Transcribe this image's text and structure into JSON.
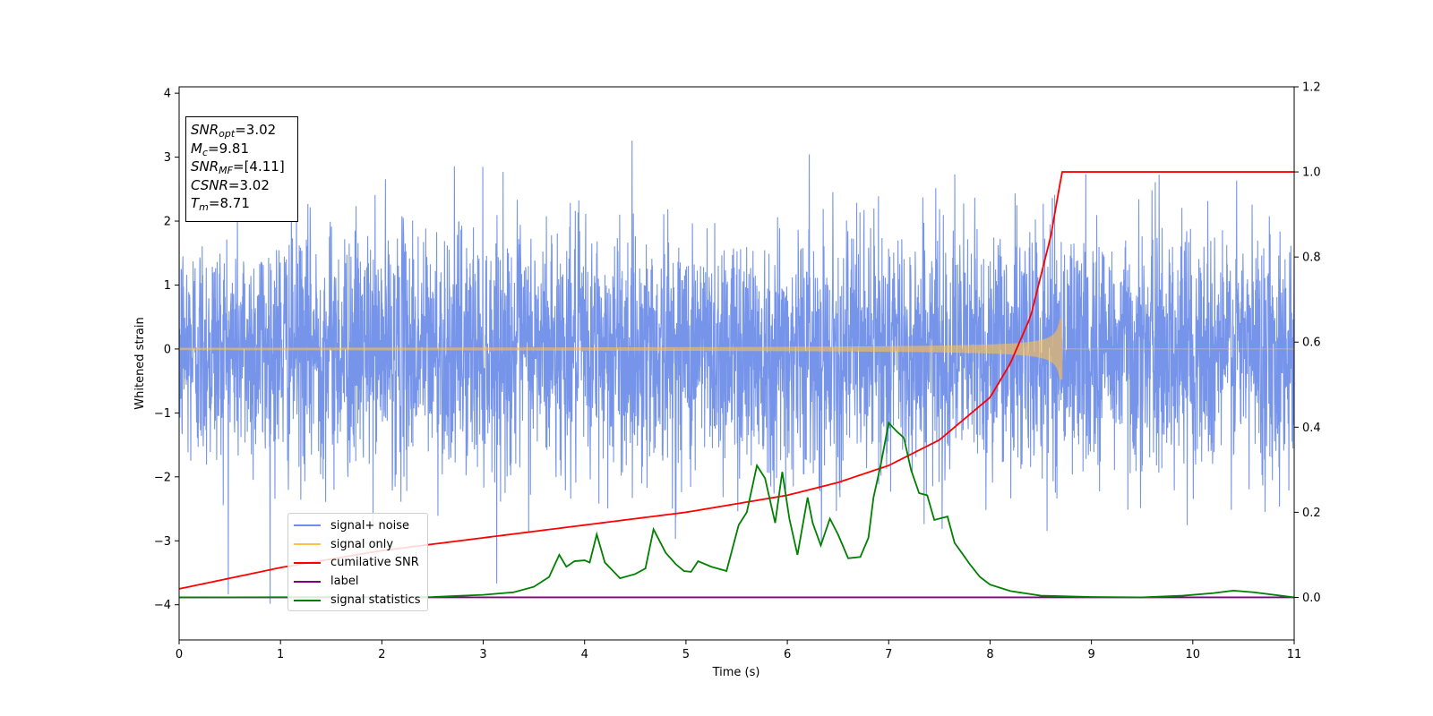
{
  "chart_data": {
    "type": "line",
    "title": "",
    "xlabel": "Time (s)",
    "ylabel": "Whitened strain",
    "xlim": [
      0,
      11
    ],
    "ylim_left": [
      -4.55,
      4.1
    ],
    "ylim_right": [
      -0.1,
      1.2
    ],
    "x_ticks": [
      "0",
      "1",
      "2",
      "3",
      "4",
      "5",
      "6",
      "7",
      "8",
      "9",
      "10",
      "11"
    ],
    "y_ticks_left": [
      "−4",
      "−3",
      "−2",
      "−1",
      "0",
      "1",
      "2",
      "3",
      "4"
    ],
    "y_ticks_right": [
      "0.0",
      "0.2",
      "0.4",
      "0.6",
      "0.8",
      "1.0",
      "1.2"
    ],
    "legend_placement": "lower-left",
    "grid": false,
    "series": [
      {
        "name": "signal+ noise",
        "axis": "left",
        "color": "#6f8ee8",
        "description_values": {
          "amplitude_std": 0.95,
          "x_range": [
            0,
            11
          ]
        }
      },
      {
        "name": "signal only",
        "axis": "left",
        "color": "#ffc04d",
        "chirp": {
          "end_time": 8.71,
          "peak_amplitude": 0.48,
          "start_amplitude": 0.02
        }
      },
      {
        "name": "cumilative SNR",
        "axis": "right",
        "color": "#ff0000",
        "x": [
          0,
          1,
          2,
          3,
          4,
          5,
          6,
          6.5,
          7,
          7.5,
          8,
          8.2,
          8.4,
          8.6,
          8.71,
          11
        ],
        "values": [
          0.02,
          0.07,
          0.11,
          0.14,
          0.17,
          0.2,
          0.24,
          0.27,
          0.31,
          0.37,
          0.47,
          0.55,
          0.66,
          0.85,
          1.0,
          1.0
        ]
      },
      {
        "name": "label",
        "axis": "right",
        "color": "#800080",
        "x": [
          0,
          11
        ],
        "values": [
          0.0,
          0.0
        ]
      },
      {
        "name": "signal statistics",
        "axis": "right",
        "color": "#008000",
        "x": [
          0,
          2.5,
          3,
          3.3,
          3.5,
          3.65,
          3.75,
          3.82,
          3.9,
          4.0,
          4.05,
          4.12,
          4.2,
          4.35,
          4.5,
          4.6,
          4.68,
          4.8,
          4.9,
          4.98,
          5.05,
          5.12,
          5.25,
          5.4,
          5.52,
          5.6,
          5.7,
          5.78,
          5.88,
          5.95,
          6.02,
          6.1,
          6.2,
          6.25,
          6.33,
          6.42,
          6.5,
          6.6,
          6.72,
          6.8,
          6.85,
          6.92,
          7.0,
          7.08,
          7.15,
          7.22,
          7.3,
          7.38,
          7.45,
          7.58,
          7.65,
          7.72,
          7.8,
          7.9,
          8.0,
          8.2,
          8.5,
          9.0,
          9.5,
          9.9,
          10.2,
          10.4,
          10.6,
          11.0
        ],
        "values": [
          0.0,
          0.001,
          0.006,
          0.012,
          0.025,
          0.048,
          0.1,
          0.072,
          0.085,
          0.087,
          0.082,
          0.148,
          0.082,
          0.045,
          0.055,
          0.068,
          0.16,
          0.105,
          0.078,
          0.062,
          0.06,
          0.085,
          0.072,
          0.062,
          0.17,
          0.2,
          0.31,
          0.28,
          0.175,
          0.295,
          0.185,
          0.1,
          0.235,
          0.175,
          0.122,
          0.185,
          0.148,
          0.092,
          0.095,
          0.14,
          0.235,
          0.31,
          0.41,
          0.39,
          0.375,
          0.3,
          0.245,
          0.24,
          0.182,
          0.19,
          0.128,
          0.105,
          0.078,
          0.048,
          0.03,
          0.015,
          0.004,
          0.001,
          0.0,
          0.004,
          0.01,
          0.016,
          0.012,
          0.0
        ]
      }
    ]
  },
  "info_box": {
    "line1_var": "SNR",
    "line1_sub": "opt",
    "line1_val": "=3.02",
    "line2_var": "M",
    "line2_sub": "c",
    "line2_val": "=9.81",
    "line3_var": "SNR",
    "line3_sub": "MF",
    "line3_val": "=[4.11]",
    "line4_var": "CSNR",
    "line4_val": "=3.02",
    "line5_var": "T",
    "line5_sub": "m",
    "line5_val": "=8.71"
  }
}
